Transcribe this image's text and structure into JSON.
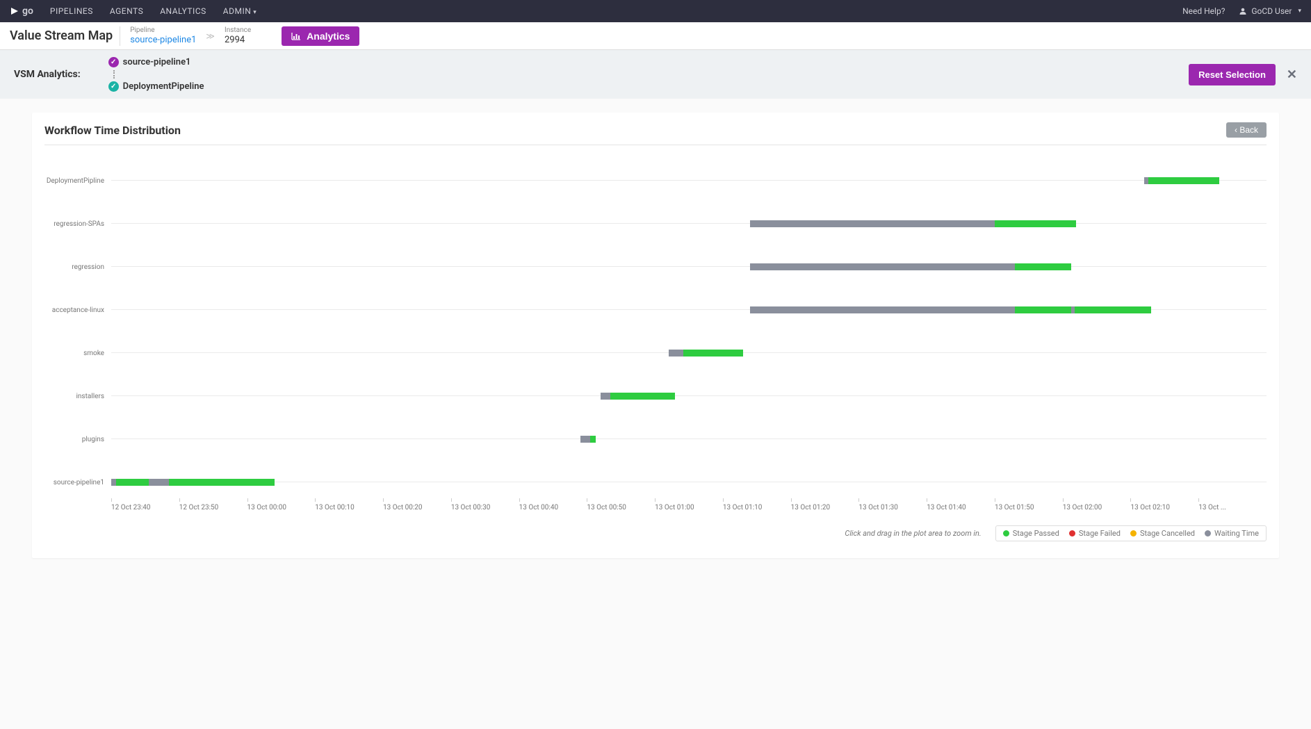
{
  "nav": {
    "logo_text": "go",
    "items": [
      "PIPELINES",
      "AGENTS",
      "ANALYTICS",
      "ADMIN"
    ],
    "help": "Need Help?",
    "user": "GoCD User"
  },
  "header": {
    "title": "Value Stream Map",
    "pipeline_label": "Pipeline",
    "pipeline_value": "source-pipeline1",
    "instance_label": "Instance",
    "instance_value": "2994",
    "analytics_btn": "Analytics"
  },
  "vsm": {
    "label": "VSM Analytics:",
    "from": "source-pipeline1",
    "to": "DeploymentPipeline",
    "reset": "Reset Selection"
  },
  "chart": {
    "title": "Workflow Time Distribution",
    "back": "Back",
    "hint": "Click and drag in the plot area to zoom in.",
    "colors": {
      "passed": "#2ecc40",
      "failed": "#e03131",
      "cancelled": "#f5b301",
      "waiting": "#8a8f9c"
    },
    "legend": [
      {
        "label": "Stage Passed",
        "color": "#2ecc40"
      },
      {
        "label": "Stage Failed",
        "color": "#e03131"
      },
      {
        "label": "Stage Cancelled",
        "color": "#f5b301"
      },
      {
        "label": "Waiting Time",
        "color": "#8a8f9c"
      }
    ],
    "x_ticks": [
      "12 Oct 23:40",
      "12 Oct 23:50",
      "13 Oct 00:00",
      "13 Oct 00:10",
      "13 Oct 00:20",
      "13 Oct 00:30",
      "13 Oct 00:40",
      "13 Oct 00:50",
      "13 Oct 01:00",
      "13 Oct 01:10",
      "13 Oct 01:20",
      "13 Oct 01:30",
      "13 Oct 01:40",
      "13 Oct 01:50",
      "13 Oct 02:00",
      "13 Oct 02:10",
      "13 Oct ..."
    ],
    "x_range_minutes": 170,
    "rows": [
      {
        "label": "DeploymentPipline",
        "segments": [
          {
            "start": 152,
            "end": 152.6,
            "color": "waiting"
          },
          {
            "start": 152.6,
            "end": 163,
            "color": "passed"
          }
        ]
      },
      {
        "label": "regression-SPAs",
        "segments": [
          {
            "start": 94,
            "end": 130,
            "color": "waiting"
          },
          {
            "start": 130,
            "end": 142,
            "color": "passed"
          }
        ]
      },
      {
        "label": "regression",
        "segments": [
          {
            "start": 94,
            "end": 133,
            "color": "waiting"
          },
          {
            "start": 133,
            "end": 141.3,
            "color": "passed"
          }
        ]
      },
      {
        "label": "acceptance-linux",
        "segments": [
          {
            "start": 94,
            "end": 133,
            "color": "waiting"
          },
          {
            "start": 133,
            "end": 141.3,
            "color": "passed"
          },
          {
            "start": 141.3,
            "end": 141.8,
            "color": "waiting"
          },
          {
            "start": 141.8,
            "end": 153,
            "color": "passed"
          }
        ]
      },
      {
        "label": "smoke",
        "segments": [
          {
            "start": 82,
            "end": 84.2,
            "color": "waiting"
          },
          {
            "start": 84.2,
            "end": 93,
            "color": "passed"
          }
        ]
      },
      {
        "label": "installers",
        "segments": [
          {
            "start": 72,
            "end": 73.4,
            "color": "waiting"
          },
          {
            "start": 73.4,
            "end": 83,
            "color": "passed"
          }
        ]
      },
      {
        "label": "plugins",
        "segments": [
          {
            "start": 69,
            "end": 70.5,
            "color": "waiting"
          },
          {
            "start": 70.5,
            "end": 71.3,
            "color": "passed"
          }
        ]
      },
      {
        "label": "source-pipeline1",
        "segments": [
          {
            "start": 0,
            "end": 0.7,
            "color": "waiting"
          },
          {
            "start": 0.7,
            "end": 5.5,
            "color": "passed"
          },
          {
            "start": 5.5,
            "end": 8.5,
            "color": "waiting"
          },
          {
            "start": 8.5,
            "end": 24,
            "color": "passed"
          }
        ]
      }
    ]
  }
}
